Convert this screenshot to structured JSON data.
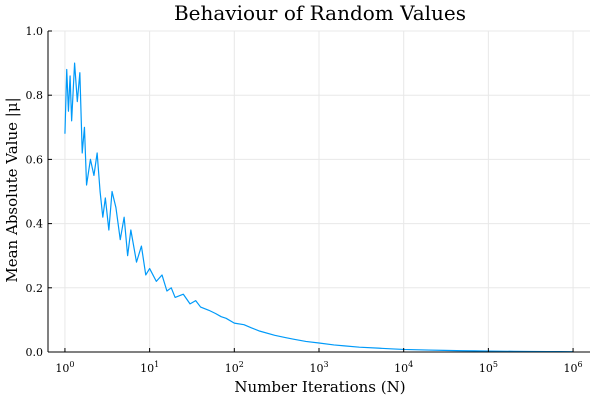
{
  "chart_data": {
    "type": "line",
    "title": "Behaviour of Random Values",
    "xlabel": "Number Iterations (N)",
    "ylabel": "Mean Absolute Value |μ|",
    "x_scale": "log10",
    "xlim": [
      1,
      1000000
    ],
    "ylim": [
      0,
      1
    ],
    "grid": true,
    "legend": "none",
    "x_ticks": [
      {
        "value": 1,
        "base": "10",
        "exp": "0"
      },
      {
        "value": 10,
        "base": "10",
        "exp": "1"
      },
      {
        "value": 100,
        "base": "10",
        "exp": "2"
      },
      {
        "value": 1000,
        "base": "10",
        "exp": "3"
      },
      {
        "value": 10000,
        "base": "10",
        "exp": "4"
      },
      {
        "value": 100000,
        "base": "10",
        "exp": "5"
      },
      {
        "value": 1000000,
        "base": "10",
        "exp": "6"
      }
    ],
    "y_ticks": [
      {
        "value": 0,
        "label": "0.0"
      },
      {
        "value": 0.2,
        "label": "0.2"
      },
      {
        "value": 0.4,
        "label": "0.4"
      },
      {
        "value": 0.6,
        "label": "0.6"
      },
      {
        "value": 0.8,
        "label": "0.8"
      },
      {
        "value": 1,
        "label": "1.0"
      }
    ],
    "series": [
      {
        "color": "#009af9",
        "x": [
          1,
          1.05,
          1.1,
          1.15,
          1.2,
          1.3,
          1.4,
          1.5,
          1.6,
          1.7,
          1.8,
          2.0,
          2.2,
          2.4,
          2.6,
          2.8,
          3.0,
          3.3,
          3.6,
          4.0,
          4.5,
          5.0,
          5.5,
          6.0,
          7.0,
          8.0,
          9.0,
          10,
          12,
          14,
          16,
          18,
          20,
          25,
          30,
          35,
          40,
          50,
          60,
          70,
          80,
          100,
          130,
          160,
          200,
          300,
          400,
          500,
          700,
          1000,
          1500,
          2000,
          3000,
          5000,
          7000,
          10000,
          20000,
          30000,
          50000,
          70000,
          100000,
          200000,
          300000,
          500000,
          700000,
          1000000
        ],
        "y": [
          0.68,
          0.88,
          0.75,
          0.86,
          0.72,
          0.9,
          0.78,
          0.87,
          0.62,
          0.7,
          0.52,
          0.6,
          0.55,
          0.62,
          0.5,
          0.42,
          0.48,
          0.38,
          0.5,
          0.45,
          0.35,
          0.42,
          0.3,
          0.38,
          0.28,
          0.33,
          0.24,
          0.26,
          0.22,
          0.24,
          0.19,
          0.2,
          0.17,
          0.18,
          0.15,
          0.16,
          0.14,
          0.13,
          0.12,
          0.11,
          0.105,
          0.09,
          0.085,
          0.075,
          0.065,
          0.052,
          0.045,
          0.04,
          0.033,
          0.028,
          0.022,
          0.019,
          0.015,
          0.012,
          0.01,
          0.008,
          0.006,
          0.005,
          0.004,
          0.0035,
          0.003,
          0.002,
          0.0018,
          0.0014,
          0.0012,
          0.001
        ]
      }
    ]
  }
}
